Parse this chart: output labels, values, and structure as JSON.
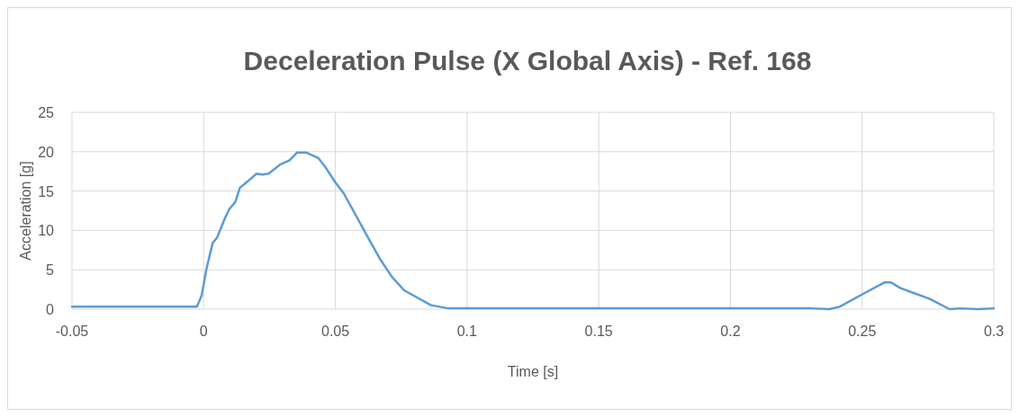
{
  "chart_data": {
    "type": "line",
    "title": "Deceleration Pulse (X Global Axis) - Ref. 168",
    "xlabel": "Time [s]",
    "ylabel": "Acceleration [g]",
    "xlim": [
      -0.05,
      0.3
    ],
    "xticks": [
      -0.05,
      0,
      0.05,
      0.1,
      0.15,
      0.2,
      0.25,
      0.3
    ],
    "ylim": [
      0,
      25
    ],
    "yticks": [
      0,
      5,
      10,
      15,
      20,
      25
    ],
    "grid": true,
    "marker": "none",
    "line_style": "solid",
    "series": [
      {
        "color": "#5b9bd5",
        "x": [
          -0.05,
          -0.0132,
          -0.0026,
          -0.0008,
          0.0011,
          0.0034,
          0.0051,
          0.008,
          0.0097,
          0.012,
          0.0137,
          0.0166,
          0.02,
          0.0223,
          0.0246,
          0.0292,
          0.0326,
          0.0355,
          0.0389,
          0.0435,
          0.0463,
          0.05,
          0.0532,
          0.0578,
          0.0624,
          0.0669,
          0.0715,
          0.0761,
          0.0863,
          0.093,
          0.1,
          0.15,
          0.2164,
          0.231,
          0.2376,
          0.2414,
          0.2507,
          0.2586,
          0.261,
          0.2644,
          0.27,
          0.2757,
          0.2832,
          0.2872,
          0.294,
          0.3
        ],
        "values": [
          0.3,
          0.3,
          0.3,
          1.7,
          5.2,
          8.4,
          9.1,
          11.5,
          12.7,
          13.6,
          15.4,
          16.2,
          17.2,
          17.1,
          17.2,
          18.4,
          18.9,
          19.9,
          19.9,
          19.2,
          18,
          16.1,
          14.7,
          11.9,
          9.1,
          6.4,
          4.1,
          2.4,
          0.5,
          0.1,
          0.1,
          0.1,
          0.1,
          0.1,
          0,
          0.3,
          2,
          3.4,
          3.4,
          2.7,
          2,
          1.3,
          0,
          0.1,
          0,
          0.1
        ]
      }
    ]
  }
}
